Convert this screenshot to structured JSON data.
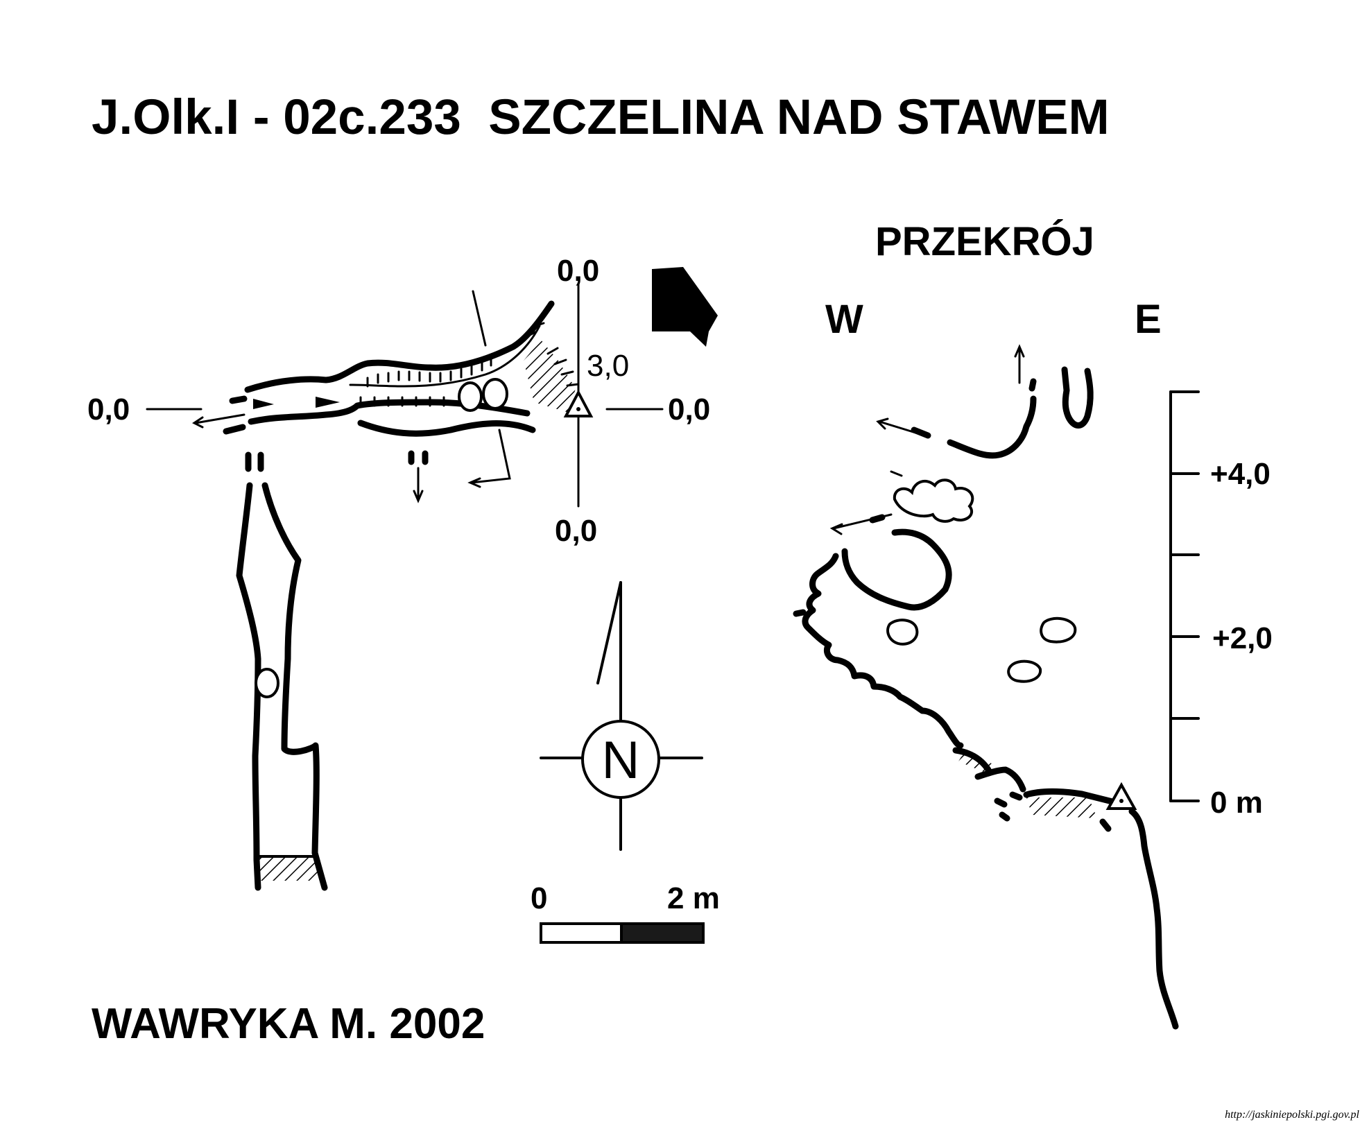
{
  "title": "J.Olk.I - 02c.233  SZCZELINA NAD STAWEM",
  "section_title": "PRZEKRÓJ",
  "directions": {
    "west": "W",
    "east": "E"
  },
  "plan_labels": {
    "top": "0,0",
    "left": "0,0",
    "right": "0,0",
    "bottom": "0,0",
    "depth": "3,0"
  },
  "compass": {
    "letter": "N"
  },
  "scale_bar": {
    "start": "0",
    "end": "2 m",
    "length_m": 2
  },
  "vertical_scale": {
    "labels": [
      "+4,0",
      "+2,0",
      "0 m"
    ],
    "range_m": [
      0,
      5
    ]
  },
  "author": "WAWRYKA M. 2002",
  "credit": "http://jaskiniepolski.pgi.gov.pl",
  "colors": {
    "ink": "#000000",
    "paper": "#ffffff"
  }
}
